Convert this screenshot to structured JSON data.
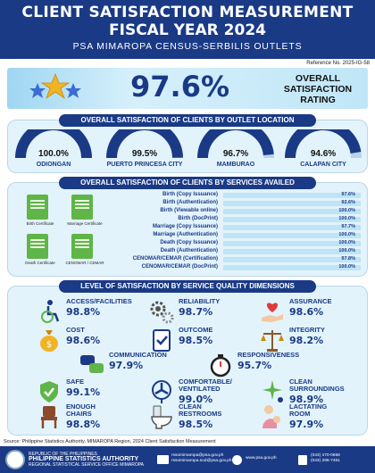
{
  "header": {
    "title_line1": "CLIENT SATISFACTION MEASUREMENT",
    "title_line2": "FISCAL YEAR 2024",
    "subtitle": "PSA MIMAROPA CENSUS-SERBILIS OUTLETS"
  },
  "reference_no": "Reference No. 2025-IG-58",
  "overall": {
    "value": "97.6%",
    "label_line1": "OVERALL",
    "label_line2": "SATISFACTION",
    "label_line3": "RATING"
  },
  "outlets": {
    "title": "OVERALL SATISFACTION OF CLIENTS BY OUTLET LOCATION",
    "items": [
      {
        "value": "100.0%",
        "name": "ODIONGAN",
        "level": 100.0
      },
      {
        "value": "99.5%",
        "name": "PUERTO PRINCESA CITY",
        "level": 99.5
      },
      {
        "value": "96.7%",
        "name": "MAMBURAO",
        "level": 96.7
      },
      {
        "value": "94.6%",
        "name": "CALAPAN CITY",
        "level": 94.6
      }
    ]
  },
  "services": {
    "title": "OVERALL SATISFACTION OF CLIENTS BY SERVICES AVAILED",
    "certificates": [
      "Birth Certificate",
      "Marriage Certificate",
      "Death Certificate",
      "CENOMAR / CEMAR"
    ],
    "items": [
      {
        "label": "Birth (Copy Issuance)",
        "value": "97.6%"
      },
      {
        "label": "Birth (Authentication)",
        "value": "92.6%"
      },
      {
        "label": "Birth (Viewable online)",
        "value": "100.0%"
      },
      {
        "label": "Birth (DocPrint)",
        "value": "100.0%"
      },
      {
        "label": "Marriage (Copy Issuance)",
        "value": "97.7%"
      },
      {
        "label": "Marriage (Authentication)",
        "value": "100.0%"
      },
      {
        "label": "Death (Copy Issuance)",
        "value": "100.0%"
      },
      {
        "label": "Death (Authentication)",
        "value": "100.0%"
      },
      {
        "label": "CENOMAR/CEMAR (Certification)",
        "value": "97.8%"
      },
      {
        "label": "CENOMAR/CEMAR (DocPrint)",
        "value": "100.0%"
      }
    ]
  },
  "dimensions": {
    "title": "LEVEL OF SATISFACTION BY SERVICE QUALITY DIMENSIONS",
    "items": [
      {
        "label": "ACCESS/FACILITIES",
        "value": "98.8%",
        "icon": "wheelchair-icon"
      },
      {
        "label": "RELIABILITY",
        "value": "98.7%",
        "icon": "gears-icon"
      },
      {
        "label": "ASSURANCE",
        "value": "98.6%",
        "icon": "heart-hand-icon"
      },
      {
        "label": "COST",
        "value": "98.6%",
        "icon": "money-bag-icon"
      },
      {
        "label": "OUTCOME",
        "value": "98.5%",
        "icon": "clipboard-check-icon"
      },
      {
        "label": "INTEGRITY",
        "value": "98.2%",
        "icon": "scales-icon"
      },
      {
        "label": "COMMUNICATION",
        "value": "97.9%",
        "icon": "chat-icon"
      },
      {
        "label": "RESPONSIVENESS",
        "value": "95.7%",
        "icon": "stopwatch-icon"
      },
      {
        "label": "SAFE",
        "value": "99.1%",
        "icon": "shield-check-icon"
      },
      {
        "label_line1": "COMFORTABLE/",
        "label_line2": "VENTILATED",
        "value": "99.0%",
        "icon": "fan-icon"
      },
      {
        "label_line1": "CLEAN",
        "label_line2": "SURROUNDINGS",
        "value": "98.9%",
        "icon": "sparkle-icon"
      },
      {
        "label_line1": "ENOUGH",
        "label_line2": "CHAIRS",
        "value": "98.8%",
        "icon": "chair-icon"
      },
      {
        "label_line1": "CLEAN",
        "label_line2": "RESTROOMS",
        "value": "98.5%",
        "icon": "toilet-icon"
      },
      {
        "label_line1": "LACTATING",
        "label_line2": "ROOM",
        "value": "97.9%",
        "icon": "mother-baby-icon"
      }
    ]
  },
  "source": "Source: Philippine Statistics Authority, MIMAROPA Region, 2024 Client Satisfaction Measurement",
  "footer": {
    "agency_line1": "REPUBLIC OF THE PHILIPPINES",
    "agency_line2": "PHILIPPINE STATISTICS AUTHORITY",
    "agency_line3": "REGIONAL STATISTICAL SERVICE OFFICE MIMAROPA",
    "email1": "rssomimaropa@psa.gov.ph",
    "email2": "rssomimaropa.sod@psa.gov.ph",
    "website": "www.psa.gov.ph",
    "phone1": "(043) 470-0668",
    "phone2": "(043) 286-7481"
  },
  "colors": {
    "navy": "#1a3a86",
    "panel": "#e3f3fb",
    "green": "#5fb548",
    "gold": "#f0b323"
  }
}
